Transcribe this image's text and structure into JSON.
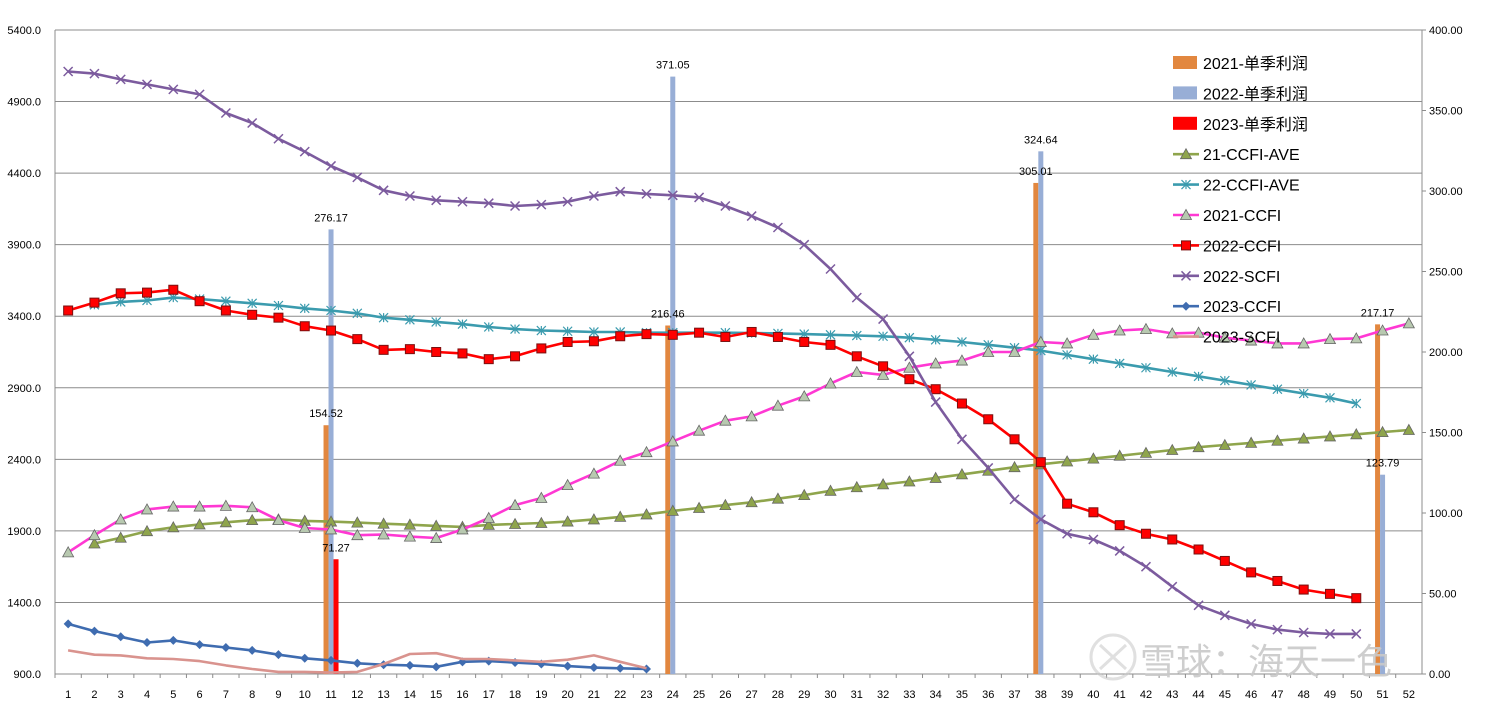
{
  "chart_data": {
    "type": "bar+line",
    "x": [
      1,
      2,
      3,
      4,
      5,
      6,
      7,
      8,
      9,
      10,
      11,
      12,
      13,
      14,
      15,
      16,
      17,
      18,
      19,
      20,
      21,
      22,
      23,
      24,
      25,
      26,
      27,
      28,
      29,
      30,
      31,
      32,
      33,
      34,
      35,
      36,
      37,
      38,
      39,
      40,
      41,
      42,
      43,
      44,
      45,
      46,
      47,
      48,
      49,
      50,
      51,
      52
    ],
    "x_tick_labels": [
      "1",
      "2",
      "3",
      "4",
      "5",
      "6",
      "7",
      "8",
      "9",
      "10",
      "11",
      "12",
      "13",
      "14",
      "15",
      "16",
      "17",
      "18",
      "19",
      "20",
      "21",
      "22",
      "23",
      "24",
      "25",
      "26",
      "27",
      "28",
      "29",
      "30",
      "31",
      "32",
      "33",
      "34",
      "35",
      "36",
      "37",
      "38",
      "39",
      "40",
      "41",
      "42",
      "43",
      "44",
      "45",
      "46",
      "47",
      "48",
      "49",
      "50",
      "51",
      "52"
    ],
    "y_left": {
      "range": [
        900,
        5400
      ],
      "ticks": [
        900,
        1400,
        1900,
        2400,
        2900,
        3400,
        3900,
        4400,
        4900,
        5400
      ],
      "tick_labels": [
        "900.0",
        "1400.0",
        "1900.0",
        "2400.0",
        "2900.0",
        "3400.0",
        "3900.0",
        "4400.0",
        "4900.0",
        "5400.0"
      ]
    },
    "y_right": {
      "range": [
        0,
        400
      ],
      "ticks": [
        0,
        50,
        100,
        150,
        200,
        250,
        300,
        350,
        400
      ],
      "tick_labels": [
        "0.00",
        "50.00",
        "100.00",
        "150.00",
        "200.00",
        "250.00",
        "300.00",
        "350.00",
        "400.00"
      ]
    },
    "grid": true,
    "legend_position": "top-right",
    "bars": [
      {
        "name": "2021-单季利润",
        "color": "#E2873F",
        "points": [
          {
            "x": 11,
            "value": 154.52
          },
          {
            "x": 24,
            "value": 216.46
          },
          {
            "x": 38,
            "value": 305.01
          },
          {
            "x": 51,
            "value": 217.17
          }
        ]
      },
      {
        "name": "2022-单季利润",
        "color": "#98AED6",
        "points": [
          {
            "x": 11,
            "value": 276.17
          },
          {
            "x": 24,
            "value": 371.05
          },
          {
            "x": 38,
            "value": 324.64
          },
          {
            "x": 51,
            "value": 123.79
          }
        ]
      },
      {
        "name": "2023-单季利润",
        "color": "#FF0000",
        "points": [
          {
            "x": 11,
            "value": 71.27
          }
        ]
      }
    ],
    "bar_label_texts": [
      "154.52",
      "216.46",
      "305.01",
      "217.17",
      "276.17",
      "371.05",
      "324.64",
      "123.79",
      "71.27"
    ],
    "lines": [
      {
        "name": "21-CCFI-AVE",
        "color": "#8FA54C",
        "marker": "triangle",
        "values": [
          null,
          1812,
          1852,
          1898,
          1925,
          1945,
          1960,
          1975,
          1980,
          1970,
          1965,
          1958,
          1950,
          1943,
          1935,
          1928,
          1942,
          1948,
          1955,
          1965,
          1980,
          1998,
          2015,
          2040,
          2060,
          2080,
          2100,
          2125,
          2150,
          2180,
          2205,
          2225,
          2245,
          2270,
          2295,
          2320,
          2345,
          2365,
          2385,
          2405,
          2425,
          2445,
          2465,
          2485,
          2500,
          2515,
          2530,
          2545,
          2560,
          2575,
          2590,
          2605
        ]
      },
      {
        "name": "22-CCFI-AVE",
        "color": "#3B9BAE",
        "marker": "star",
        "values": [
          null,
          3480,
          3500,
          3510,
          3530,
          3520,
          3505,
          3490,
          3475,
          3455,
          3440,
          3420,
          3390,
          3375,
          3360,
          3345,
          3325,
          3310,
          3300,
          3295,
          3290,
          3290,
          3285,
          3285,
          3285,
          3285,
          3282,
          3280,
          3275,
          3270,
          3265,
          3260,
          3250,
          3235,
          3220,
          3200,
          3180,
          3160,
          3130,
          3100,
          3070,
          3040,
          3010,
          2980,
          2950,
          2920,
          2890,
          2860,
          2830,
          2790,
          null,
          null
        ]
      },
      {
        "name": "2021-CCFI",
        "color": "#FF38D3",
        "marker": "triangle",
        "values": [
          1750,
          1870,
          1980,
          2050,
          2070,
          2070,
          2075,
          2065,
          1975,
          1920,
          1910,
          1870,
          1875,
          1860,
          1850,
          1910,
          1990,
          2080,
          2130,
          2220,
          2300,
          2390,
          2450,
          2525,
          2600,
          2670,
          2700,
          2775,
          2840,
          2930,
          3010,
          2990,
          3040,
          3070,
          3090,
          3150,
          3150,
          3220,
          3210,
          3270,
          3300,
          3310,
          3280,
          3285,
          3250,
          3230,
          3210,
          3210,
          3240,
          3245,
          3300,
          3350
        ]
      },
      {
        "name": "2022-CCFI",
        "color": "#FF0000",
        "marker": "square",
        "values": [
          3440,
          3495,
          3560,
          3565,
          3585,
          3505,
          3440,
          3410,
          3390,
          3330,
          3300,
          3240,
          3165,
          3170,
          3150,
          3140,
          3100,
          3120,
          3175,
          3220,
          3225,
          3260,
          3275,
          3270,
          3285,
          3255,
          3290,
          3255,
          3220,
          3200,
          3120,
          3050,
          2960,
          2890,
          2790,
          2680,
          2540,
          2380,
          2090,
          2030,
          1940,
          1880,
          1840,
          1770,
          1690,
          1610,
          1550,
          1490,
          1460,
          1430,
          null,
          null
        ]
      },
      {
        "name": "2022-SCFI",
        "color": "#7C5B9E",
        "marker": "x",
        "values": [
          5110,
          5095,
          5055,
          5020,
          4985,
          4950,
          4820,
          4750,
          4640,
          4550,
          4450,
          4370,
          4280,
          4240,
          4210,
          4200,
          4190,
          4170,
          4180,
          4200,
          4240,
          4270,
          4255,
          4245,
          4230,
          4170,
          4100,
          4020,
          3900,
          3730,
          3530,
          3380,
          3120,
          2800,
          2540,
          2340,
          2120,
          1980,
          1880,
          1840,
          1760,
          1650,
          1510,
          1380,
          1310,
          1250,
          1210,
          1190,
          1180,
          1180,
          null,
          null
        ]
      },
      {
        "name": "2023-CCFI",
        "color": "#3F6CB0",
        "marker": "diamond",
        "values": [
          1250,
          1200,
          1160,
          1120,
          1135,
          1105,
          1085,
          1065,
          1035,
          1010,
          995,
          975,
          965,
          960,
          950,
          985,
          990,
          980,
          970,
          955,
          945,
          940,
          935,
          null,
          null,
          null,
          null,
          null,
          null,
          null,
          null,
          null,
          null,
          null,
          null,
          null,
          null,
          null,
          null,
          null,
          null,
          null,
          null,
          null,
          null,
          null,
          null,
          null,
          null,
          null,
          null,
          null
        ]
      },
      {
        "name": "2023-SCFI",
        "color": "#D9938E",
        "marker": "none",
        "values": [
          1065,
          1035,
          1030,
          1010,
          1005,
          990,
          960,
          935,
          915,
          915,
          910,
          915,
          970,
          1040,
          1045,
          1005,
          1005,
          995,
          985,
          1000,
          1030,
          985,
          940,
          null,
          null,
          null,
          null,
          null,
          null,
          null,
          null,
          null,
          null,
          null,
          null,
          null,
          null,
          null,
          null,
          null,
          null,
          null,
          null,
          null,
          null,
          null,
          null,
          null,
          null,
          null,
          null,
          null
        ]
      }
    ],
    "watermark": "雪球：海天一色"
  }
}
